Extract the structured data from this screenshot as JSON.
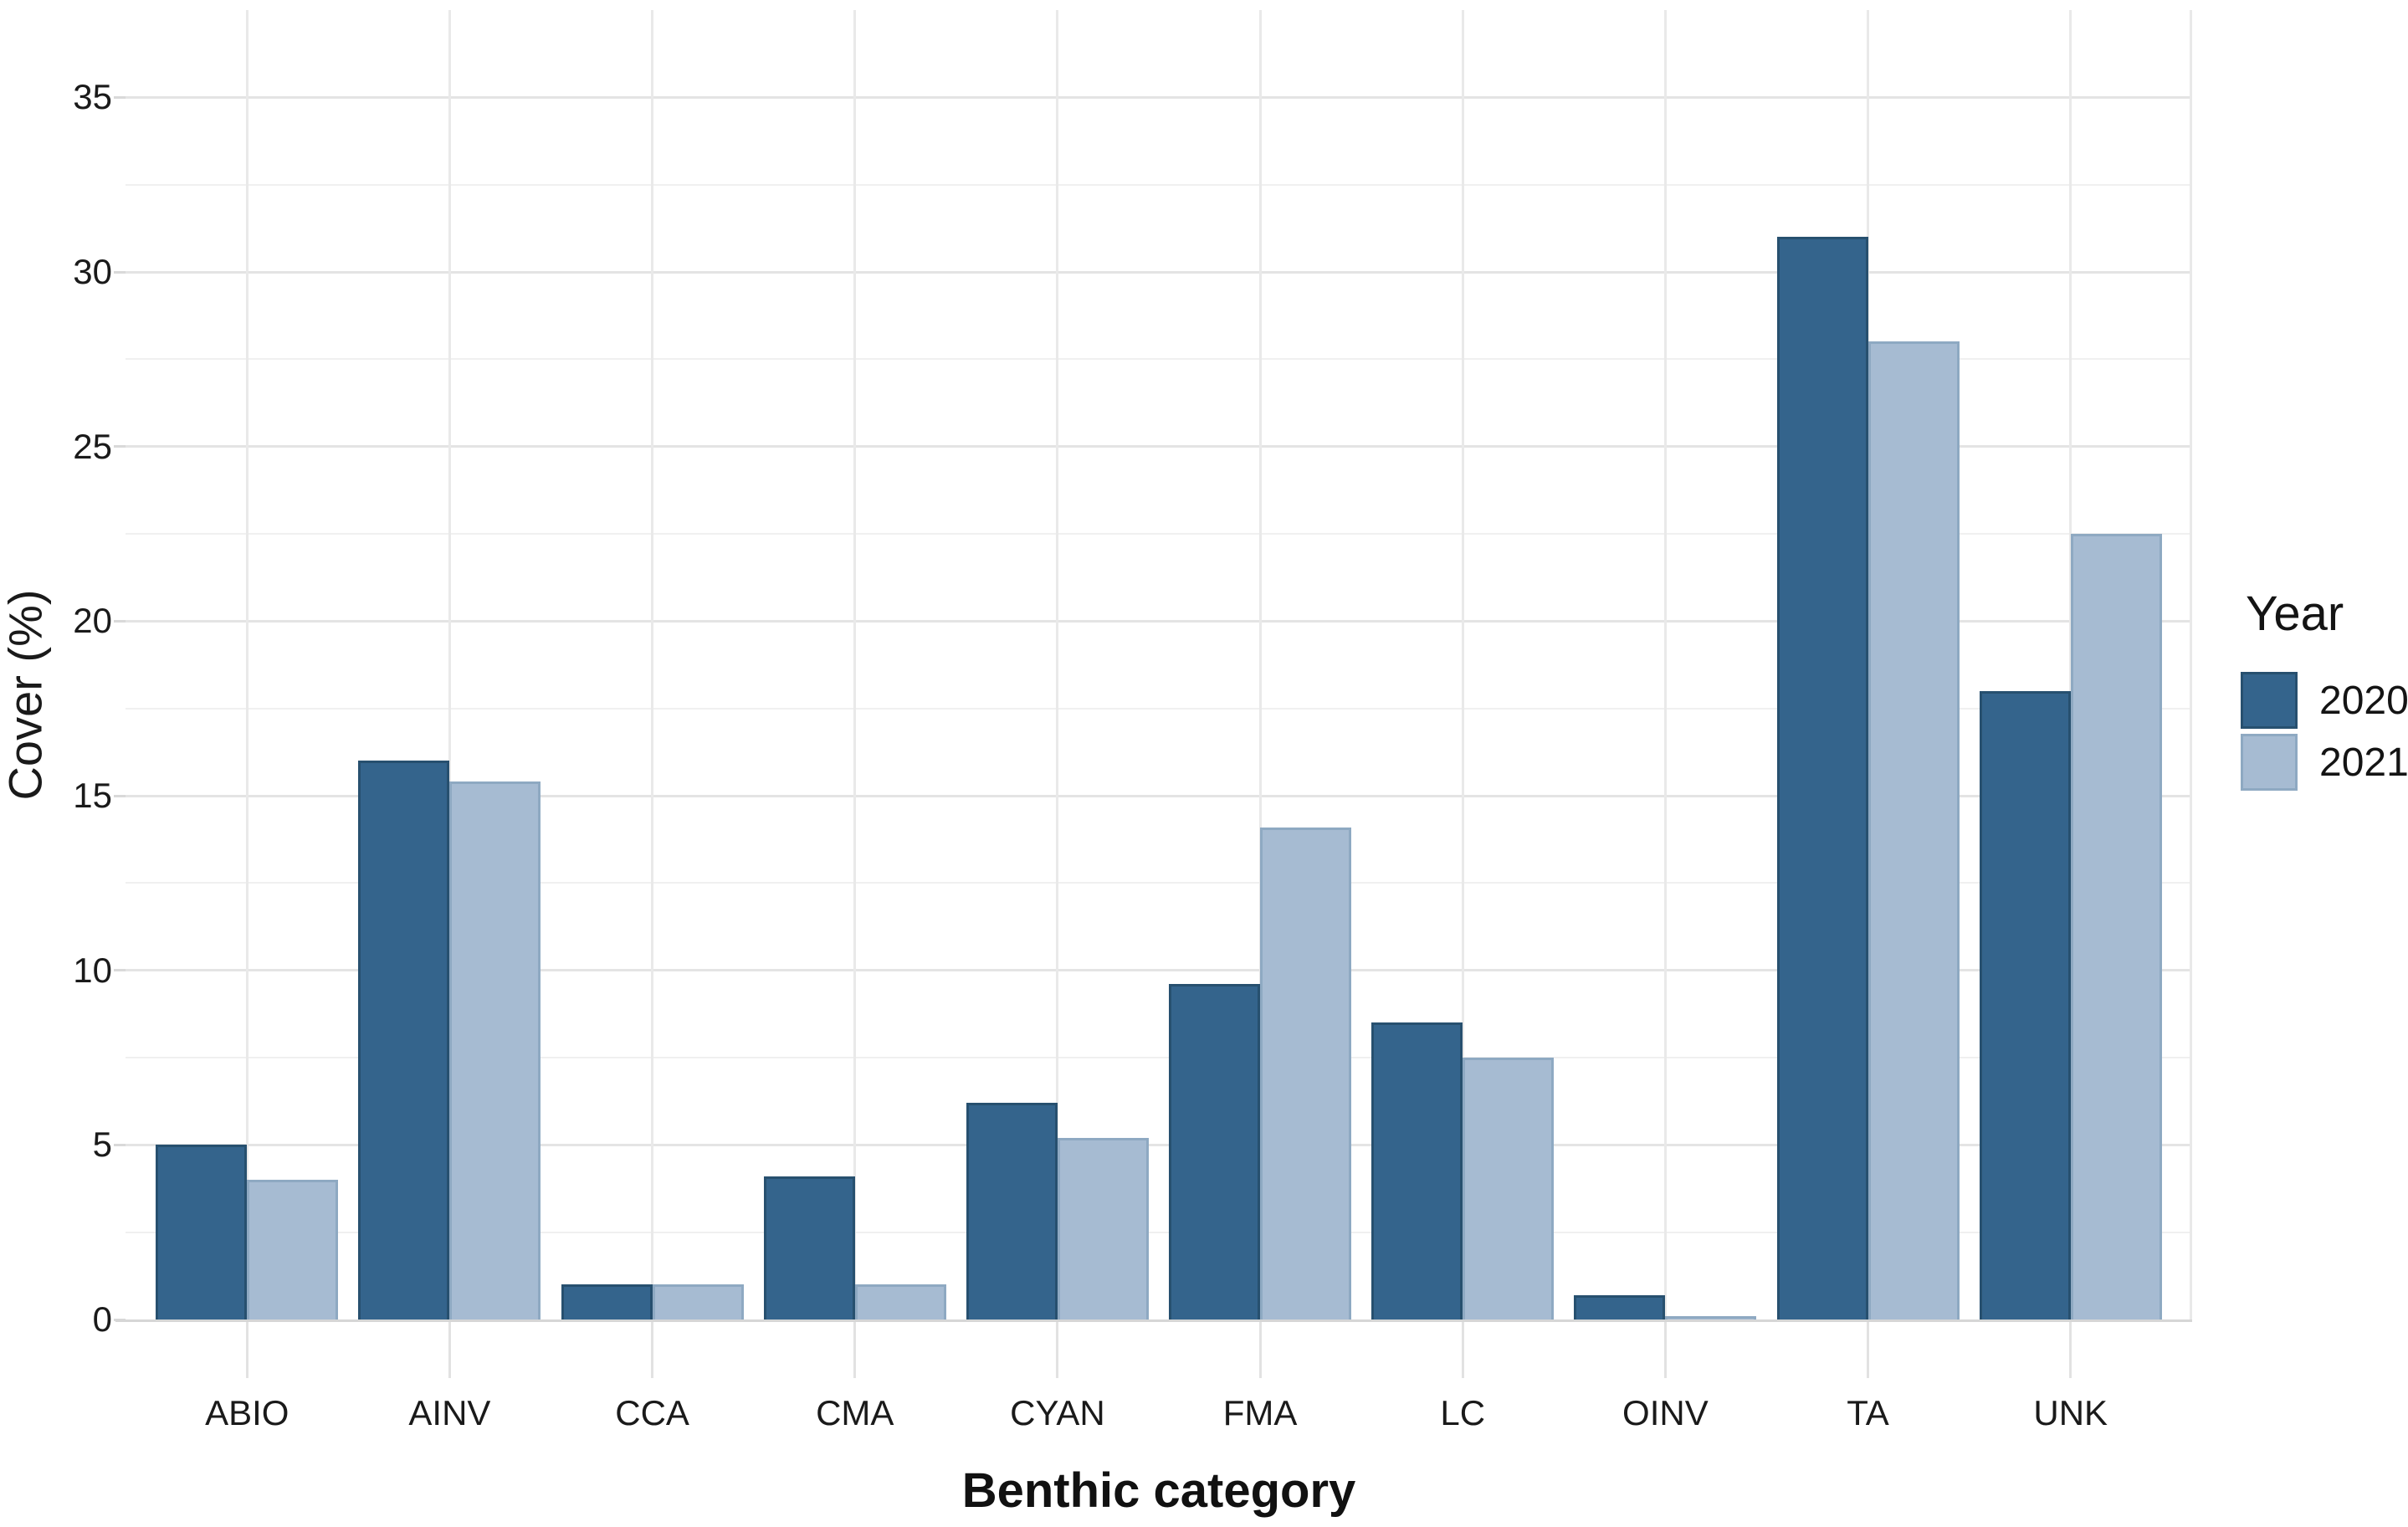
{
  "chart_data": {
    "type": "bar",
    "title": "",
    "categories": [
      "ABIO",
      "AINV",
      "CCA",
      "CMA",
      "CYAN",
      "FMA",
      "LC",
      "OINV",
      "TA",
      "UNK"
    ],
    "series": [
      {
        "name": "2020",
        "color": "#34648c",
        "border_color": "#27506f",
        "values": [
          5.0,
          16.0,
          1.0,
          4.1,
          6.2,
          9.6,
          8.5,
          0.7,
          31.0,
          18.0
        ]
      },
      {
        "name": "2021",
        "color": "#a6bbd2",
        "border_color": "#8ea9c2",
        "values": [
          4.0,
          15.4,
          1.0,
          1.0,
          5.2,
          14.1,
          7.5,
          0.1,
          28.0,
          22.5
        ]
      }
    ],
    "xlabel": "Benthic category",
    "ylabel": "Cover (%)",
    "ylim": [
      0,
      35
    ],
    "yticks": [
      0,
      5,
      10,
      15,
      20,
      25,
      30,
      35
    ],
    "minor_grid_step": 2.5,
    "grid": true,
    "legend_title": "Year",
    "legend_position": "right",
    "background": "#ffffff"
  },
  "colors": {
    "grid_major": "#e4e4e4",
    "grid_minor": "#f0f0f0",
    "grid_vertical": "#e9e9e9",
    "axis_line": "#d6d6d6",
    "tick_mark": "#e2e2e2",
    "text": "#1a1a1a"
  }
}
